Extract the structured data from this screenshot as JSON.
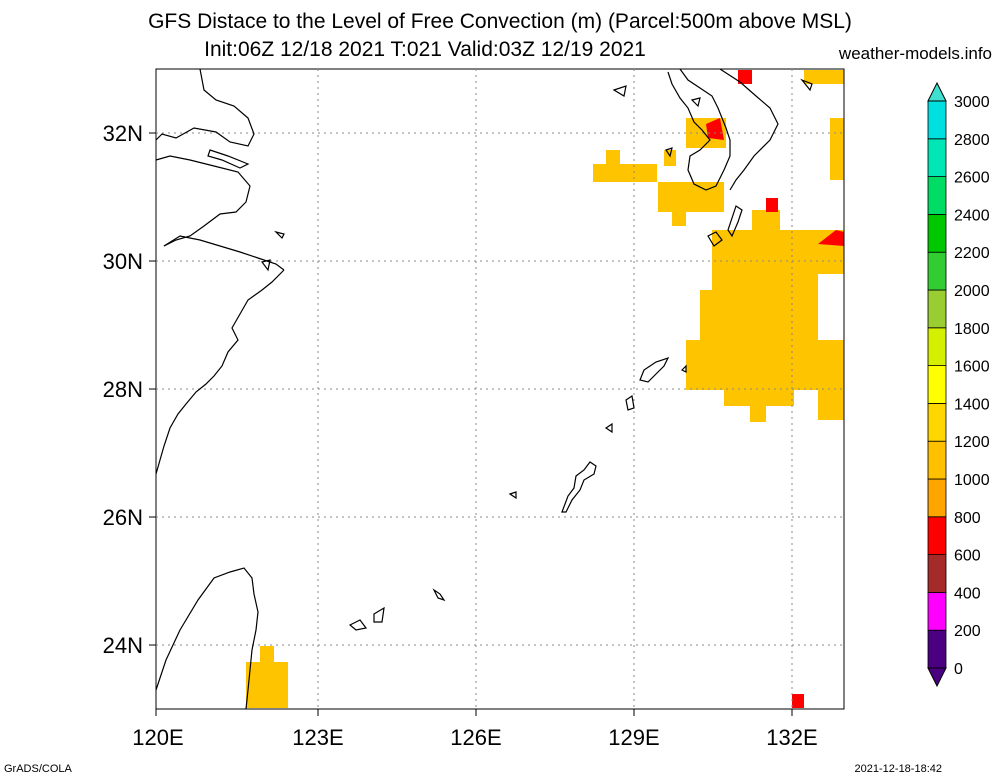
{
  "title": {
    "line1": "GFS Distace to the Level of Free Convection (m) (Parcel:500m above MSL)",
    "line2": "Init:06Z 12/18 2021 T:021 Valid:03Z 12/19 2021"
  },
  "site": "weather-models.info",
  "footer": {
    "left": "GrADS/COLA",
    "right": "2021-12-18-18:42"
  },
  "map": {
    "lon_labels": [
      "120E",
      "123E",
      "126E",
      "129E",
      "132E"
    ],
    "lat_labels": [
      "32N",
      "30N",
      "28N",
      "26N",
      "24N"
    ],
    "lon_range": [
      120,
      133
    ],
    "lat_range": [
      23,
      33
    ]
  },
  "colorbar": {
    "labels": [
      "0",
      "200",
      "400",
      "600",
      "800",
      "1000",
      "1200",
      "1400",
      "1600",
      "1800",
      "2000",
      "2200",
      "2400",
      "2600",
      "2800",
      "3000"
    ],
    "colors": [
      "#4b0082",
      "#ff00ff",
      "#a52a2a",
      "#ff0000",
      "#ffa500",
      "#ffc000",
      "#ffd700",
      "#ffff00",
      "#d4f000",
      "#9acd32",
      "#32cd32",
      "#00c800",
      "#00dc64",
      "#00e6b4",
      "#00e0e0",
      "#40e0d0"
    ]
  },
  "colors": {
    "orange": "#ffb400",
    "red": "#ff0000",
    "gold": "#ffc400"
  }
}
